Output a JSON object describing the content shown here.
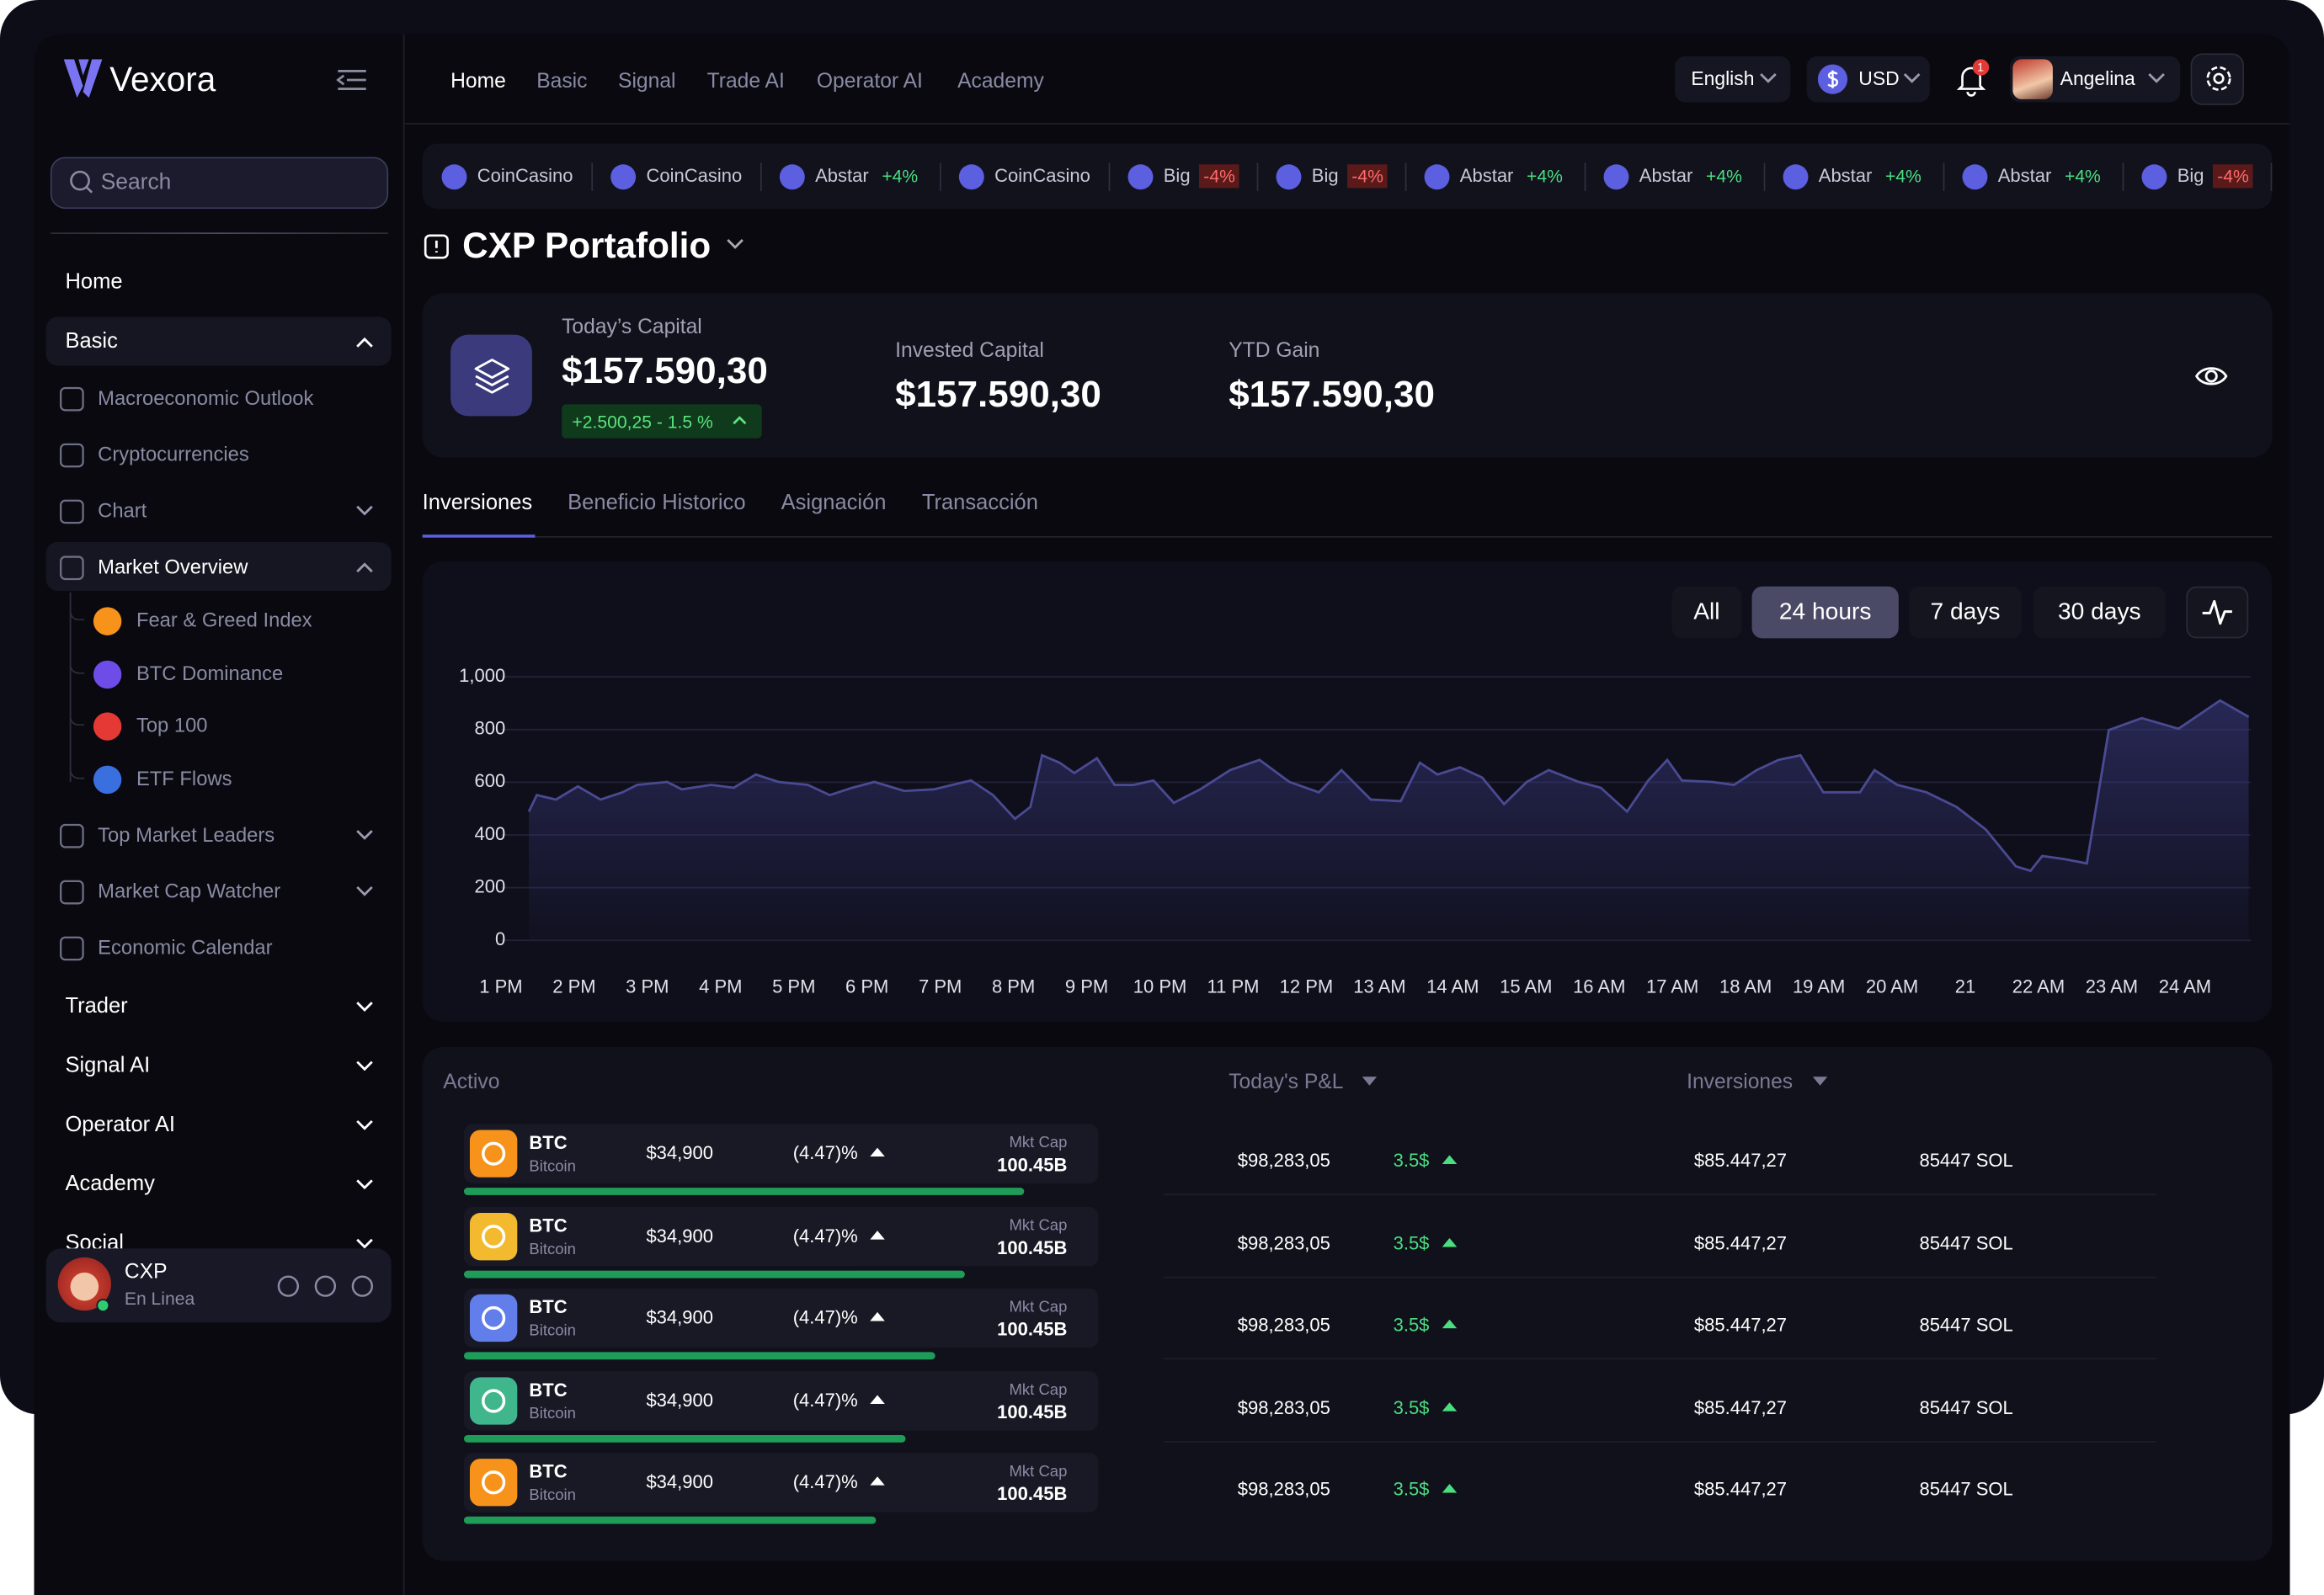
{
  "brand": "Vexora",
  "top_nav": [
    "Home",
    "Basic",
    "Signal",
    "Trade AI",
    "Operator AI",
    "Academy"
  ],
  "header_controls": {
    "language": "English",
    "currency": "USD",
    "notifications": "1",
    "user": "Angelina"
  },
  "sidebar": {
    "search_placeholder": "Search",
    "items": [
      "Home",
      "Basic",
      "Macroeconomic Outlook",
      "Cryptocurrencies",
      "Chart",
      "Market Overview",
      "Fear & Greed Index",
      "BTC Dominance",
      "Top 100",
      "ETF Flows",
      "Top Market Leaders",
      "Market Cap Watcher",
      "Economic Calendar",
      "Trader",
      "Signal AI",
      "Operator AI",
      "Academy",
      "Social"
    ],
    "user": {
      "name": "CXP",
      "status": "En Linea"
    }
  },
  "ticker": [
    {
      "name": "CoinCasino"
    },
    {
      "name": "CoinCasino"
    },
    {
      "name": "Abstar",
      "change": "+4%"
    },
    {
      "name": "CoinCasino"
    },
    {
      "name": "Big",
      "change": "-4%"
    },
    {
      "name": "Big",
      "change": "-4%"
    },
    {
      "name": "Abstar",
      "change": "+4%"
    },
    {
      "name": "Abstar",
      "change": "+4%"
    },
    {
      "name": "Abstar",
      "change": "+4%"
    },
    {
      "name": "Abstar",
      "change": "+4%"
    },
    {
      "name": "Big",
      "change": "-4%"
    }
  ],
  "page_title": "CXP Portafolio",
  "summary": {
    "todays_capital": {
      "label": "Today’s Capital",
      "value": "$157.590,30",
      "change": "+2.500,25 - 1.5 %"
    },
    "invested_capital": {
      "label": "Invested Capital",
      "value": "$157.590,30"
    },
    "ytd_gain": {
      "label": "YTD Gain",
      "value": "$157.590,30"
    }
  },
  "tabs": [
    "Inversiones",
    "Beneficio Historico",
    "Asignación",
    "Transacción"
  ],
  "active_tab": 0,
  "chart_controls": {
    "ranges": [
      "All",
      "24 hours",
      "7 days",
      "30 days"
    ],
    "active_range": 1
  },
  "chart_data": {
    "type": "area",
    "color": "#4a4a92",
    "x": [
      0.38,
      0.49,
      0.75,
      1.05,
      1.36,
      1.66,
      1.86,
      2.27,
      2.47,
      2.87,
      3.18,
      3.48,
      3.79,
      4.19,
      4.49,
      4.8,
      5.1,
      5.51,
      5.91,
      6.42,
      6.72,
      7.02,
      7.23,
      7.39,
      7.63,
      7.83,
      8.14,
      8.38,
      8.64,
      8.91,
      9.19,
      9.55,
      9.96,
      10.36,
      10.77,
      11.17,
      11.48,
      11.88,
      12.29,
      12.55,
      12.79,
      13.1,
      13.4,
      13.7,
      14.01,
      14.31,
      14.72,
      15.02,
      15.38,
      15.67,
      15.93,
      16.13,
      16.54,
      16.84,
      17.15,
      17.45,
      17.75,
      18.06,
      18.56,
      18.76,
      19.07,
      19.47,
      19.88,
      20.28,
      20.69,
      20.89,
      21.05,
      21.34,
      21.66,
      21.96,
      22.41,
      22.91,
      23.48,
      23.87
    ],
    "values": [
      489,
      551,
      534,
      584,
      534,
      562,
      590,
      601,
      573,
      590,
      579,
      629,
      601,
      590,
      551,
      579,
      601,
      567,
      573,
      607,
      551,
      461,
      506,
      702,
      674,
      635,
      691,
      590,
      590,
      607,
      522,
      573,
      646,
      685,
      601,
      562,
      646,
      534,
      528,
      674,
      629,
      657,
      618,
      517,
      601,
      646,
      601,
      579,
      489,
      607,
      685,
      607,
      601,
      590,
      646,
      685,
      702,
      562,
      562,
      646,
      590,
      562,
      506,
      421,
      281,
      264,
      320,
      309,
      292,
      798,
      843,
      803,
      910,
      848
    ],
    "xlim": [
      -0.2,
      23.9
    ],
    "xticks": [
      {
        "value": 0,
        "label": "1 PM"
      },
      {
        "value": 1,
        "label": "2 PM"
      },
      {
        "value": 2,
        "label": "3 PM"
      },
      {
        "value": 3,
        "label": "4 PM"
      },
      {
        "value": 4,
        "label": "5 PM"
      },
      {
        "value": 5,
        "label": "6 PM"
      },
      {
        "value": 6,
        "label": "7 PM"
      },
      {
        "value": 7,
        "label": "8 PM"
      },
      {
        "value": 8,
        "label": "9 PM"
      },
      {
        "value": 9,
        "label": "10 PM"
      },
      {
        "value": 10,
        "label": "11 PM"
      },
      {
        "value": 11,
        "label": "12 PM"
      },
      {
        "value": 12,
        "label": "13 AM"
      },
      {
        "value": 13,
        "label": "14 AM"
      },
      {
        "value": 14,
        "label": "15 AM"
      },
      {
        "value": 15,
        "label": "16 AM"
      },
      {
        "value": 16,
        "label": "17 AM"
      },
      {
        "value": 17,
        "label": "18 AM"
      },
      {
        "value": 18,
        "label": "19 AM"
      },
      {
        "value": 19,
        "label": "20 AM"
      },
      {
        "value": 20,
        "label": "21"
      },
      {
        "value": 21,
        "label": "22 AM"
      },
      {
        "value": 22,
        "label": "23 AM"
      },
      {
        "value": 23,
        "label": "24 AM"
      }
    ],
    "ylim": [
      0,
      1000
    ],
    "yticks": [
      0,
      200,
      400,
      600,
      800,
      {
        "value": 1000,
        "label": "1,000"
      }
    ],
    "grid": true
  },
  "table": {
    "headers": [
      "Activo",
      "Today's P&L",
      "Inversiones"
    ],
    "rows": [
      {
        "symbol": "BTC",
        "name": "Bitcoin",
        "price": "$34,900",
        "change": "(4.47)%",
        "mkt_cap_label": "Mkt Cap",
        "mkt_cap": "100.45B",
        "pnl": "$98,283,05",
        "pnl_pct": "3.5$",
        "investment": "$85.447,27",
        "holdings": "85447 SOL"
      },
      {
        "symbol": "BTC",
        "name": "Bitcoin",
        "price": "$34,900",
        "change": "(4.47)%",
        "mkt_cap_label": "Mkt Cap",
        "mkt_cap": "100.45B",
        "pnl": "$98,283,05",
        "pnl_pct": "3.5$",
        "investment": "$85.447,27",
        "holdings": "85447 SOL"
      },
      {
        "symbol": "BTC",
        "name": "Bitcoin",
        "price": "$34,900",
        "change": "(4.47)%",
        "mkt_cap_label": "Mkt Cap",
        "mkt_cap": "100.45B",
        "pnl": "$98,283,05",
        "pnl_pct": "3.5$",
        "investment": "$85.447,27",
        "holdings": "85447 SOL"
      },
      {
        "symbol": "BTC",
        "name": "Bitcoin",
        "price": "$34,900",
        "change": "(4.47)%",
        "mkt_cap_label": "Mkt Cap",
        "mkt_cap": "100.45B",
        "pnl": "$98,283,05",
        "pnl_pct": "3.5$",
        "investment": "$85.447,27",
        "holdings": "85447 SOL"
      },
      {
        "symbol": "BTC",
        "name": "Bitcoin",
        "price": "$34,900",
        "change": "(4.47)%",
        "mkt_cap_label": "Mkt Cap",
        "mkt_cap": "100.45B",
        "pnl": "$98,283,05",
        "pnl_pct": "3.5$",
        "investment": "$85.447,27",
        "holdings": "85447 SOL"
      }
    ]
  }
}
